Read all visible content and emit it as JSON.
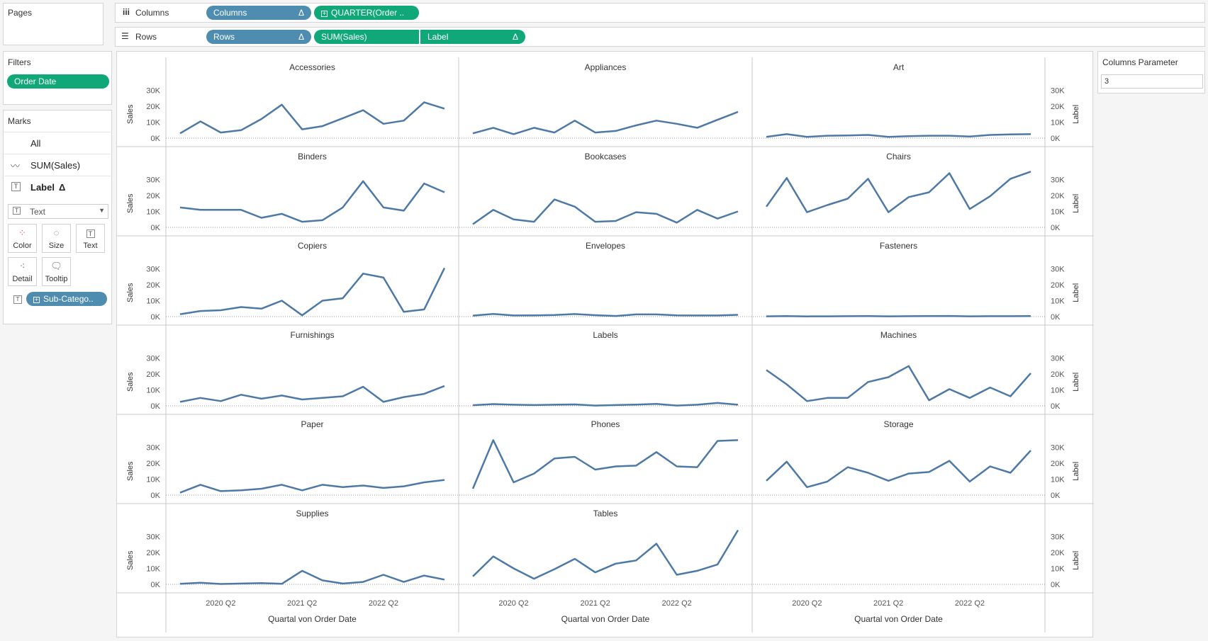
{
  "shelves": {
    "pages_title": "Pages",
    "columns_label": "Columns",
    "rows_label": "Rows",
    "columns_pills": [
      {
        "text": "Columns",
        "delta": "Δ",
        "plus": ""
      },
      {
        "text": "QUARTER(Order ..",
        "delta": "",
        "plus": "+"
      }
    ],
    "rows_pills": [
      {
        "text": "Rows",
        "delta": "Δ",
        "plus": ""
      },
      {
        "text": "SUM(Sales)",
        "delta": "",
        "plus": ""
      },
      {
        "text": "Label",
        "delta": "Δ",
        "plus": ""
      }
    ]
  },
  "filters": {
    "title": "Filters",
    "items": [
      "Order Date"
    ]
  },
  "marks": {
    "title": "Marks",
    "all_label": "All",
    "sales_label": "SUM(Sales)",
    "label_label": "Label",
    "label_delta": "Δ",
    "mark_type": "Text",
    "buttons": [
      "Color",
      "Size",
      "Text",
      "Detail",
      "Tooltip"
    ],
    "detail_pill": "Sub-Catego.."
  },
  "parameter": {
    "title": "Columns Parameter",
    "value": "3"
  },
  "colors": {
    "line": "#4e79a7",
    "blue_pill": "#4e8db0",
    "green_pill": "#10a878"
  },
  "chart_data": {
    "type": "line",
    "ylabel_left": "Sales",
    "ylabel_right": "Label",
    "xlabel": "Quartal von Order Date",
    "yticks": [
      "0K",
      "10K",
      "20K",
      "30K"
    ],
    "ylim": [
      0,
      36000
    ],
    "xticks": [
      "2020 Q2",
      "2021 Q2",
      "2022 Q2"
    ],
    "x": [
      "2019 Q4",
      "2020 Q1",
      "2020 Q2",
      "2020 Q3",
      "2020 Q4",
      "2021 Q1",
      "2021 Q2",
      "2021 Q3",
      "2021 Q4",
      "2022 Q1",
      "2022 Q2",
      "2022 Q3",
      "2022 Q4",
      "2023 Q1"
    ],
    "panels": [
      {
        "name": "Accessories",
        "values": [
          3000,
          10500,
          3500,
          5000,
          12000,
          21000,
          5500,
          7500,
          12500,
          17500,
          9000,
          11000,
          22500,
          18500
        ]
      },
      {
        "name": "Appliances",
        "values": [
          3000,
          6500,
          2500,
          6500,
          3500,
          11000,
          3500,
          4500,
          8000,
          11000,
          9000,
          6500,
          11500,
          16500
        ]
      },
      {
        "name": "Art",
        "values": [
          800,
          2500,
          800,
          1500,
          1700,
          2000,
          800,
          1200,
          1500,
          1500,
          1000,
          2000,
          2300,
          2500
        ]
      },
      {
        "name": "Binders",
        "values": [
          12500,
          11000,
          11000,
          11000,
          6000,
          8500,
          3500,
          4500,
          12500,
          29000,
          12500,
          10500,
          27500,
          22000
        ]
      },
      {
        "name": "Bookcases",
        "values": [
          2000,
          11000,
          5000,
          3500,
          17500,
          13000,
          3500,
          4000,
          9500,
          8500,
          3000,
          11000,
          5500,
          10000
        ]
      },
      {
        "name": "Chairs",
        "values": [
          13000,
          31000,
          9500,
          14000,
          18000,
          30500,
          9500,
          19000,
          22000,
          34000,
          11500,
          19500,
          30500,
          35000
        ]
      },
      {
        "name": "Copiers",
        "values": [
          1500,
          3500,
          4000,
          6000,
          5000,
          10000,
          800,
          10000,
          11500,
          27000,
          24500,
          3000,
          4500,
          30500
        ]
      },
      {
        "name": "Envelopes",
        "values": [
          600,
          1700,
          700,
          800,
          1000,
          1600,
          900,
          400,
          1400,
          1400,
          800,
          700,
          700,
          1100
        ]
      },
      {
        "name": "Fasteners",
        "values": [
          200,
          300,
          150,
          200,
          250,
          300,
          200,
          250,
          300,
          400,
          200,
          250,
          250,
          300
        ]
      },
      {
        "name": "Furnishings",
        "values": [
          2500,
          5000,
          3000,
          7000,
          4500,
          6500,
          4000,
          5000,
          6000,
          12000,
          2500,
          5500,
          7500,
          12500
        ]
      },
      {
        "name": "Labels",
        "values": [
          400,
          1100,
          700,
          500,
          700,
          900,
          200,
          500,
          800,
          1200,
          200,
          700,
          1800,
          700
        ]
      },
      {
        "name": "Machines",
        "values": [
          22500,
          13500,
          3000,
          5000,
          5000,
          15000,
          18000,
          25000,
          3500,
          10500,
          5000,
          11500,
          6000,
          20500
        ]
      },
      {
        "name": "Paper",
        "values": [
          1500,
          6500,
          2500,
          3000,
          4000,
          6500,
          3000,
          6500,
          5000,
          6000,
          4500,
          5500,
          8000,
          9500
        ]
      },
      {
        "name": "Phones",
        "values": [
          4000,
          34500,
          8000,
          13500,
          23000,
          24000,
          16000,
          18000,
          18500,
          27000,
          18000,
          17500,
          34000,
          34500
        ]
      },
      {
        "name": "Storage",
        "values": [
          9000,
          21000,
          5000,
          8500,
          17500,
          14000,
          9000,
          13500,
          14500,
          21500,
          8500,
          18000,
          14000,
          28000
        ]
      },
      {
        "name": "Supplies",
        "values": [
          300,
          1000,
          200,
          500,
          800,
          300,
          8500,
          2500,
          500,
          1500,
          6000,
          1500,
          5500,
          3000
        ]
      },
      {
        "name": "Tables",
        "values": [
          5000,
          17500,
          10000,
          3500,
          9500,
          16000,
          7500,
          13000,
          15000,
          25500,
          6000,
          8500,
          12500,
          34000
        ]
      }
    ]
  }
}
